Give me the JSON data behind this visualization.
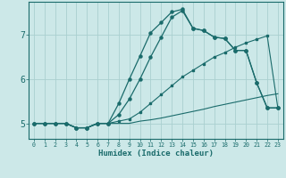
{
  "xlabel": "Humidex (Indice chaleur)",
  "bg_color": "#cce8e8",
  "line_color": "#1a6b6b",
  "grid_color": "#aad0d0",
  "xlim": [
    -0.5,
    23.5
  ],
  "ylim": [
    4.65,
    7.75
  ],
  "xticks": [
    0,
    1,
    2,
    3,
    4,
    5,
    6,
    7,
    8,
    9,
    10,
    11,
    12,
    13,
    14,
    15,
    16,
    17,
    18,
    19,
    20,
    21,
    22,
    23
  ],
  "yticks": [
    5,
    6,
    7
  ],
  "line_flat_x": [
    0,
    1,
    2,
    3,
    4,
    5,
    6,
    7,
    8,
    9,
    10,
    11,
    12,
    13,
    14,
    15,
    16,
    17,
    18,
    19,
    20,
    21,
    22,
    23
  ],
  "line_flat_y": [
    5.0,
    5.0,
    5.0,
    5.0,
    4.9,
    4.9,
    5.0,
    5.0,
    5.0,
    5.0,
    5.05,
    5.08,
    5.12,
    5.17,
    5.22,
    5.27,
    5.32,
    5.38,
    5.43,
    5.48,
    5.53,
    5.58,
    5.63,
    5.67
  ],
  "line_diag1_x": [
    0,
    1,
    2,
    3,
    4,
    5,
    6,
    7,
    8,
    9,
    10,
    11,
    12,
    13,
    14,
    15,
    16,
    17,
    18,
    19,
    20,
    21,
    22,
    23
  ],
  "line_diag1_y": [
    5.0,
    5.0,
    5.0,
    5.0,
    4.9,
    4.9,
    5.0,
    5.0,
    5.05,
    5.1,
    5.25,
    5.45,
    5.65,
    5.85,
    6.05,
    6.2,
    6.35,
    6.5,
    6.6,
    6.72,
    6.82,
    6.9,
    6.98,
    5.35
  ],
  "line_diag2_x": [
    0,
    1,
    2,
    3,
    4,
    5,
    6,
    7,
    8,
    9,
    10,
    11,
    12,
    13,
    14,
    15,
    16,
    17,
    18,
    19,
    20,
    21,
    22,
    23
  ],
  "line_diag2_y": [
    5.0,
    5.0,
    5.0,
    5.0,
    4.9,
    4.9,
    5.0,
    5.0,
    5.2,
    5.55,
    6.0,
    6.5,
    6.95,
    7.4,
    7.55,
    7.15,
    7.1,
    6.95,
    6.92,
    6.65,
    6.65,
    5.92,
    5.35,
    5.35
  ],
  "line_peak_x": [
    0,
    1,
    2,
    3,
    4,
    5,
    6,
    7,
    8,
    9,
    10,
    11,
    12,
    13,
    14,
    15,
    16,
    17,
    18,
    19,
    20,
    21,
    22,
    23
  ],
  "line_peak_y": [
    5.0,
    5.0,
    5.0,
    5.0,
    4.9,
    4.9,
    5.0,
    5.0,
    5.45,
    6.0,
    6.52,
    7.05,
    7.28,
    7.52,
    7.58,
    7.15,
    7.1,
    6.95,
    6.92,
    6.65,
    6.65,
    5.92,
    5.35,
    5.35
  ]
}
